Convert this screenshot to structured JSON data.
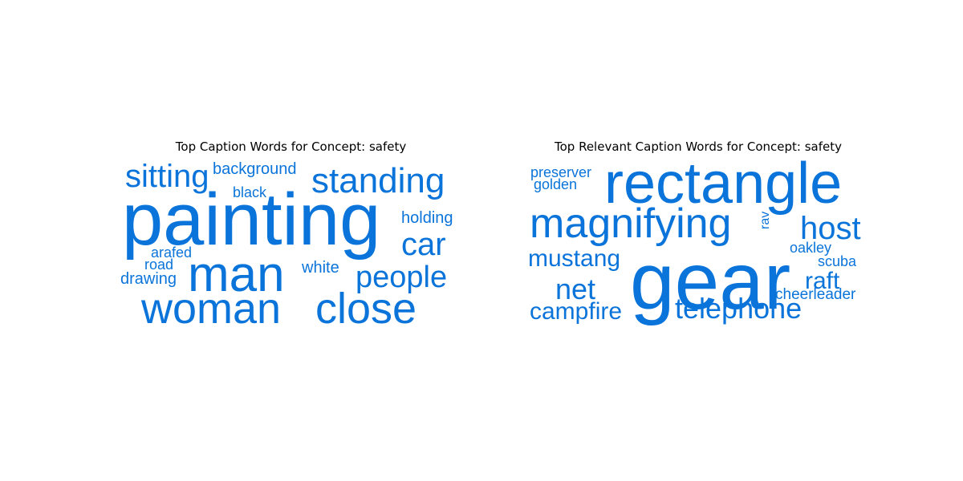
{
  "colors": {
    "word": "#0a74da",
    "title": "#000000",
    "background": "#ffffff"
  },
  "chart_data": [
    {
      "type": "wordcloud",
      "title": "Top Caption Words for Concept: safety",
      "words": [
        {
          "text": "painting",
          "weight": 1.0
        },
        {
          "text": "man",
          "weight": 0.62
        },
        {
          "text": "woman",
          "weight": 0.54
        },
        {
          "text": "close",
          "weight": 0.54
        },
        {
          "text": "standing",
          "weight": 0.42
        },
        {
          "text": "sitting",
          "weight": 0.38
        },
        {
          "text": "car",
          "weight": 0.38
        },
        {
          "text": "people",
          "weight": 0.36
        },
        {
          "text": "holding",
          "weight": 0.2
        },
        {
          "text": "background",
          "weight": 0.2
        },
        {
          "text": "white",
          "weight": 0.2
        },
        {
          "text": "drawing",
          "weight": 0.2
        },
        {
          "text": "black",
          "weight": 0.18
        },
        {
          "text": "arafed",
          "weight": 0.18
        },
        {
          "text": "road",
          "weight": 0.18
        }
      ]
    },
    {
      "type": "wordcloud",
      "title": "Top Relevant Caption Words for Concept: safety",
      "words": [
        {
          "text": "gear",
          "weight": 1.0
        },
        {
          "text": "rectangle",
          "weight": 0.72
        },
        {
          "text": "magnifying",
          "weight": 0.5
        },
        {
          "text": "host",
          "weight": 0.38
        },
        {
          "text": "net",
          "weight": 0.35
        },
        {
          "text": "mustang",
          "weight": 0.3
        },
        {
          "text": "telephone",
          "weight": 0.35
        },
        {
          "text": "campfire",
          "weight": 0.3
        },
        {
          "text": "raft",
          "weight": 0.3
        },
        {
          "text": "preserver",
          "weight": 0.18
        },
        {
          "text": "golden",
          "weight": 0.17
        },
        {
          "text": "oakley",
          "weight": 0.18
        },
        {
          "text": "scuba",
          "weight": 0.18
        },
        {
          "text": "cheerleader",
          "weight": 0.18
        },
        {
          "text": "rav",
          "weight": 0.16
        }
      ]
    }
  ]
}
